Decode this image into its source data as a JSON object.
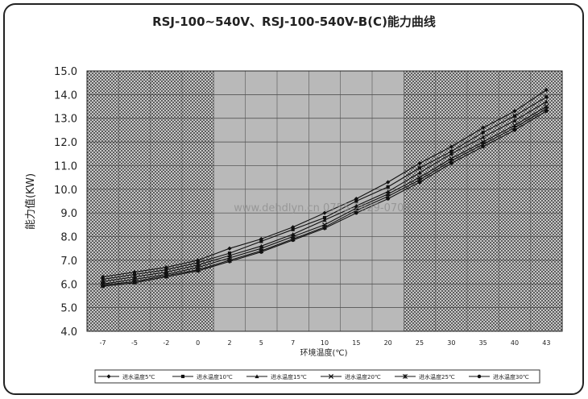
{
  "chart_data": {
    "type": "line",
    "title": "RSJ-100~540V、RSJ-100-540V-B(C)能力曲线",
    "ylabel": "能力值(KW)",
    "xlabel": "环境温度(℃)",
    "ylim": [
      4.0,
      15.0
    ],
    "yticks": [
      "4.0",
      "5.0",
      "6.0",
      "7.0",
      "8.0",
      "9.0",
      "10.0",
      "11.0",
      "12.0",
      "13.0",
      "14.0",
      "15.0"
    ],
    "categories": [
      "-7",
      "-5",
      "-2",
      "0",
      "2",
      "5",
      "7",
      "10",
      "15",
      "20",
      "25",
      "30",
      "35",
      "40",
      "43"
    ],
    "watermark": "www.dehdlyn.cn 0755-2629-0709",
    "series": [
      {
        "name": "进水温度5℃",
        "marker": "diamond",
        "values": [
          6.3,
          6.5,
          6.7,
          7.0,
          7.5,
          7.9,
          8.4,
          9.0,
          9.6,
          10.3,
          11.1,
          11.8,
          12.6,
          13.3,
          14.2
        ]
      },
      {
        "name": "进水温度10℃",
        "marker": "square",
        "values": [
          6.2,
          6.4,
          6.6,
          6.9,
          7.3,
          7.8,
          8.3,
          8.8,
          9.5,
          10.1,
          10.9,
          11.6,
          12.4,
          13.1,
          13.9
        ]
      },
      {
        "name": "进水温度15℃",
        "marker": "triangle",
        "values": [
          6.1,
          6.3,
          6.5,
          6.8,
          7.2,
          7.6,
          8.1,
          8.7,
          9.3,
          9.9,
          10.7,
          11.5,
          12.2,
          12.9,
          13.7
        ]
      },
      {
        "name": "进水温度20℃",
        "marker": "x",
        "values": [
          6.0,
          6.2,
          6.4,
          6.7,
          7.1,
          7.5,
          8.0,
          8.5,
          9.2,
          9.8,
          10.5,
          11.3,
          12.0,
          12.7,
          13.5
        ]
      },
      {
        "name": "进水温度25℃",
        "marker": "star",
        "values": [
          5.95,
          6.1,
          6.35,
          6.6,
          7.0,
          7.4,
          7.9,
          8.4,
          9.1,
          9.7,
          10.4,
          11.2,
          11.9,
          12.6,
          13.4
        ]
      },
      {
        "name": "进水温度30℃",
        "marker": "dot",
        "values": [
          5.9,
          6.05,
          6.3,
          6.55,
          6.95,
          7.35,
          7.85,
          8.35,
          9.0,
          9.6,
          10.3,
          11.1,
          11.8,
          12.5,
          13.3
        ]
      }
    ]
  }
}
